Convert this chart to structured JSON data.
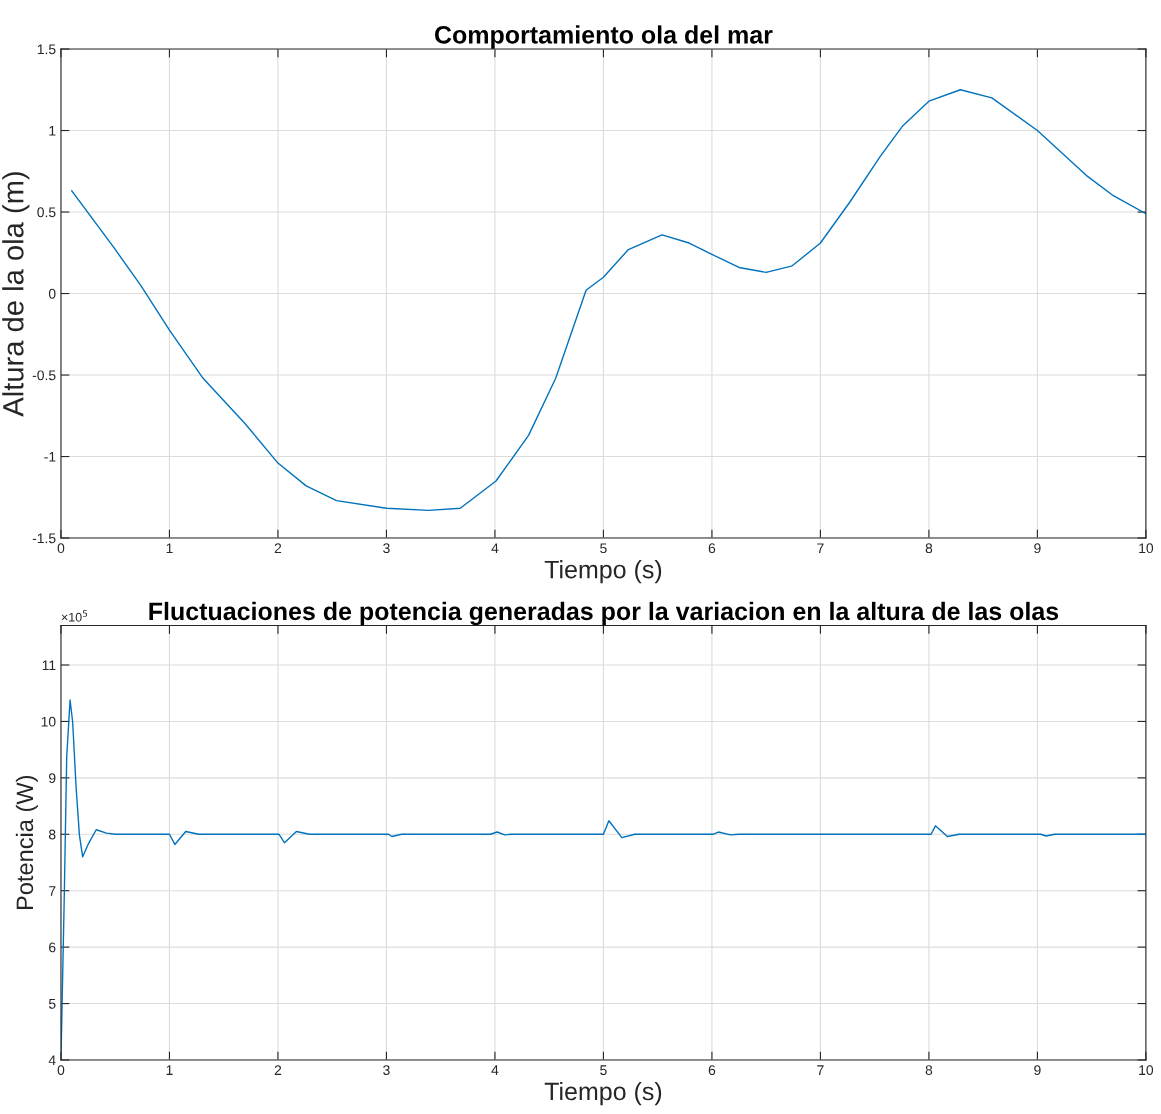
{
  "chart_data": [
    {
      "type": "line",
      "title": "Comportamiento ola del mar",
      "xlabel": "Tiempo (s)",
      "ylabel": "Altura de la ola (m)",
      "xlim": [
        0,
        10
      ],
      "ylim": [
        -1.5,
        1.5
      ],
      "xticks": [
        0,
        1,
        2,
        3,
        4,
        5,
        6,
        7,
        8,
        9,
        10
      ],
      "yticks": [
        -1.5,
        -1,
        -0.5,
        0,
        0.5,
        1,
        1.5
      ],
      "grid": true,
      "series": [
        {
          "color": "#0072bd",
          "x": [
            0.1,
            0.49,
            0.74,
            1.0,
            1.31,
            1.7,
            2.0,
            2.26,
            2.54,
            3.0,
            3.39,
            3.68,
            4.01,
            4.31,
            4.56,
            4.84,
            5.0,
            5.23,
            5.54,
            5.79,
            6.0,
            6.25,
            6.5,
            6.74,
            7.0,
            7.27,
            7.55,
            7.76,
            8.0,
            8.29,
            8.58,
            9.0,
            9.45,
            9.7,
            10.0
          ],
          "values": [
            0.63,
            0.28,
            0.045,
            -0.225,
            -0.52,
            -0.8,
            -1.04,
            -1.18,
            -1.27,
            -1.317,
            -1.33,
            -1.317,
            -1.15,
            -0.87,
            -0.52,
            0.02,
            0.1,
            0.27,
            0.36,
            0.31,
            0.24,
            0.16,
            0.13,
            0.17,
            0.31,
            0.56,
            0.84,
            1.03,
            1.18,
            1.25,
            1.2,
            1.0,
            0.725,
            0.6,
            0.49
          ]
        }
      ]
    },
    {
      "type": "line",
      "title": "Fluctuaciones de potencia generadas por la variacion en la altura de las olas",
      "xlabel": "Tiempo (s)",
      "ylabel": "Potencia (W)",
      "annotations": [
        "×10$^{5}$"
      ],
      "xlim": [
        0,
        10
      ],
      "ylim": [
        4,
        11.7
      ],
      "xticks": [
        0,
        1,
        2,
        3,
        4,
        5,
        6,
        7,
        8,
        9,
        10
      ],
      "yticks": [
        4,
        5,
        6,
        7,
        8,
        9,
        10,
        11
      ],
      "grid": true,
      "series": [
        {
          "color": "#0072bd",
          "x": [
            0,
            0.03,
            0.053,
            0.084,
            0.108,
            0.14,
            0.17,
            0.2,
            0.25,
            0.325,
            0.42,
            0.5,
            1.0,
            1.05,
            1.15,
            1.27,
            2.01,
            2.06,
            2.17,
            2.29,
            3.02,
            3.05,
            3.14,
            3.96,
            4.02,
            4.09,
            4.15,
            5.0,
            5.05,
            5.17,
            5.29,
            6.01,
            6.06,
            6.17,
            6.25,
            8.02,
            8.06,
            8.17,
            8.28,
            9.03,
            9.08,
            9.16,
            10.0
          ],
          "values": [
            4.0,
            6.84,
            9.37,
            10.38,
            9.99,
            8.82,
            7.99,
            7.6,
            7.82,
            8.08,
            8.02,
            8.0,
            8.0,
            7.82,
            8.05,
            8.0,
            8.0,
            7.85,
            8.05,
            8.0,
            8.0,
            7.96,
            8.0,
            8.0,
            8.04,
            7.99,
            8.0,
            8.0,
            8.24,
            7.94,
            8.0,
            8.0,
            8.04,
            7.99,
            8.0,
            8.0,
            8.15,
            7.96,
            8.0,
            8.0,
            7.97,
            8.0,
            8.0
          ]
        }
      ]
    }
  ]
}
